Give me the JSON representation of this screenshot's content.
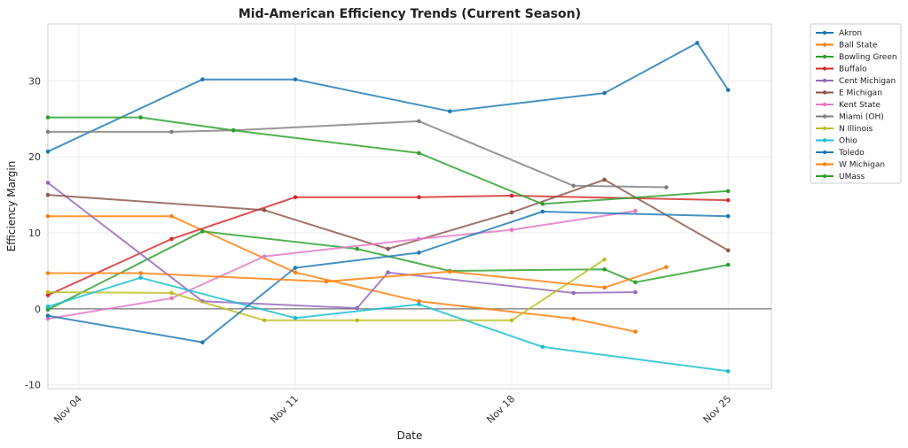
{
  "chart_data": {
    "type": "line",
    "title": "Mid-American Efficiency Trends (Current Season)",
    "xlabel": "Date",
    "ylabel": "Efficiency Margin",
    "x_unit": "days since Nov 01",
    "xlim": [
      2,
      25.4
    ],
    "ylim": [
      -10.5,
      37.5
    ],
    "x_ticks": [
      {
        "value": 3,
        "label": "Nov 04"
      },
      {
        "value": 10,
        "label": "Nov 11"
      },
      {
        "value": 17,
        "label": "Nov 18"
      },
      {
        "value": 24,
        "label": "Nov 25"
      }
    ],
    "y_ticks": [
      -10,
      0,
      10,
      20,
      30
    ],
    "grid": true,
    "zero_line": true,
    "legend_position": "outside top-right",
    "series": [
      {
        "name": "Akron",
        "color": "#1f77b4",
        "x": [
          2,
          7,
          10,
          15,
          20,
          23,
          24
        ],
        "y": [
          20.7,
          30.2,
          30.2,
          26.0,
          28.4,
          35.0,
          28.8
        ]
      },
      {
        "name": "Ball State",
        "color": "#ff7f0e",
        "x": [
          2,
          6,
          10,
          14,
          19,
          21
        ],
        "y": [
          12.2,
          12.2,
          4.8,
          1.0,
          -1.3,
          -3.0
        ]
      },
      {
        "name": "Bowling Green",
        "color": "#2ca02c",
        "x": [
          2,
          7,
          12,
          15,
          20,
          21,
          24
        ],
        "y": [
          -0.1,
          10.2,
          7.9,
          5.0,
          5.2,
          3.5,
          5.8
        ]
      },
      {
        "name": "Buffalo",
        "color": "#d62728",
        "x": [
          2,
          6,
          10,
          14,
          17,
          24
        ],
        "y": [
          1.8,
          9.2,
          14.7,
          14.7,
          14.9,
          14.3
        ]
      },
      {
        "name": "Cent Michigan",
        "color": "#9467bd",
        "x": [
          2,
          7,
          12,
          13,
          19,
          21
        ],
        "y": [
          16.6,
          1.0,
          0.1,
          4.8,
          2.1,
          2.2
        ]
      },
      {
        "name": "E Michigan",
        "color": "#8c564b",
        "x": [
          2,
          9,
          13,
          17,
          20,
          24
        ],
        "y": [
          15.0,
          13.0,
          7.9,
          12.7,
          17.0,
          7.7
        ]
      },
      {
        "name": "Kent State",
        "color": "#e377c2",
        "x": [
          2,
          6,
          9,
          14,
          17,
          21
        ],
        "y": [
          -1.3,
          1.4,
          6.9,
          9.2,
          10.4,
          12.9
        ]
      },
      {
        "name": "Miami (OH)",
        "color": "#7f7f7f",
        "x": [
          2,
          6,
          8,
          14,
          19,
          22
        ],
        "y": [
          23.3,
          23.3,
          23.5,
          24.7,
          16.2,
          16.0
        ]
      },
      {
        "name": "N Illinois",
        "color": "#bcbd22",
        "x": [
          2,
          6,
          9,
          12,
          17,
          20
        ],
        "y": [
          2.2,
          2.1,
          -1.5,
          -1.5,
          -1.5,
          6.5
        ]
      },
      {
        "name": "Ohio",
        "color": "#17becf",
        "x": [
          2,
          5,
          10,
          14,
          18,
          24
        ],
        "y": [
          0.3,
          4.1,
          -1.2,
          0.6,
          -5.0,
          -8.2
        ]
      },
      {
        "name": "Toledo",
        "color": "#1f77b4",
        "x": [
          2,
          7,
          10,
          14,
          18,
          24
        ],
        "y": [
          -0.9,
          -4.4,
          5.4,
          7.4,
          12.8,
          12.2
        ]
      },
      {
        "name": "W Michigan",
        "color": "#ff7f0e",
        "x": [
          2,
          5,
          11,
          15,
          20,
          22
        ],
        "y": [
          4.7,
          4.7,
          3.6,
          4.9,
          2.8,
          5.5
        ]
      },
      {
        "name": "UMass",
        "color": "#2ca02c",
        "x": [
          2,
          5,
          8,
          14,
          18,
          24
        ],
        "y": [
          25.2,
          25.2,
          23.5,
          20.5,
          13.8,
          15.5
        ]
      }
    ]
  }
}
